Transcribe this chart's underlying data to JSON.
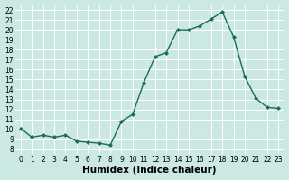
{
  "x": [
    0,
    1,
    2,
    3,
    4,
    5,
    6,
    7,
    8,
    9,
    10,
    11,
    12,
    13,
    14,
    15,
    16,
    17,
    18,
    19,
    20,
    21,
    22,
    23
  ],
  "y": [
    10.1,
    9.2,
    9.4,
    9.2,
    9.4,
    8.8,
    8.7,
    8.6,
    8.4,
    10.8,
    11.5,
    14.7,
    17.3,
    17.7,
    20.0,
    20.0,
    20.4,
    21.1,
    21.8,
    19.3,
    15.3,
    13.1,
    12.2,
    12.1
  ],
  "line_color": "#1a6b5a",
  "marker": "D",
  "marker_size": 2.0,
  "bg_color": "#cce8e4",
  "grid_color": "#ffffff",
  "xlabel": "Humidex (Indice chaleur)",
  "xlim": [
    -0.5,
    23.5
  ],
  "ylim": [
    7.5,
    22.5
  ],
  "yticks": [
    8,
    9,
    10,
    11,
    12,
    13,
    14,
    15,
    16,
    17,
    18,
    19,
    20,
    21,
    22
  ],
  "xticks": [
    0,
    1,
    2,
    3,
    4,
    5,
    6,
    7,
    8,
    9,
    10,
    11,
    12,
    13,
    14,
    15,
    16,
    17,
    18,
    19,
    20,
    21,
    22,
    23
  ],
  "tick_fontsize": 5.5,
  "xlabel_fontsize": 7.5,
  "linewidth": 1.0
}
